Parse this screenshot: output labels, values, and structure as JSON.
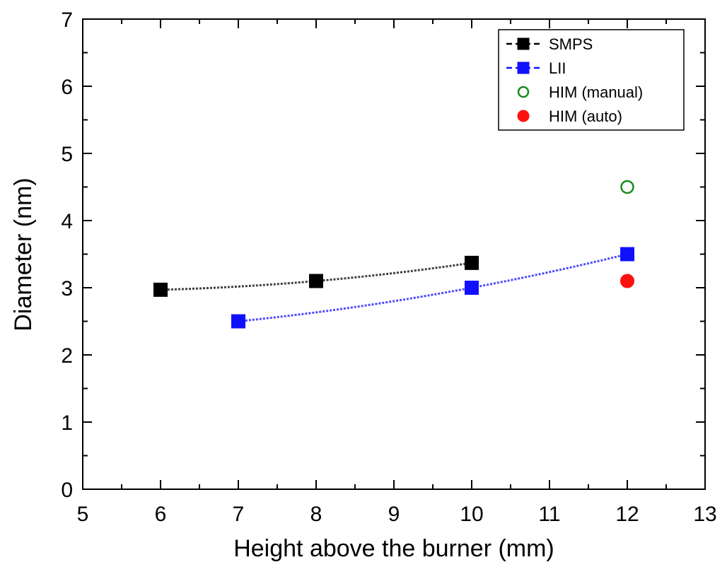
{
  "chart_data": {
    "type": "scatter",
    "title": "",
    "xlabel": "Height above the burner (mm)",
    "ylabel": "Diameter (nm)",
    "xlim": [
      5,
      13
    ],
    "ylim": [
      0,
      7
    ],
    "xticks": [
      5,
      6,
      7,
      8,
      9,
      10,
      11,
      12,
      13
    ],
    "yticks": [
      0,
      1,
      2,
      3,
      4,
      5,
      6,
      7
    ],
    "grid": false,
    "legend_position": "top-right",
    "series": [
      {
        "name": "SMPS",
        "marker": "square-filled",
        "line": "dashed-fit",
        "color": "#000000",
        "x": [
          6,
          8,
          10
        ],
        "y": [
          2.97,
          3.1,
          3.37
        ]
      },
      {
        "name": "LII",
        "marker": "square-filled",
        "line": "dashed-fit",
        "color": "#1010ff",
        "x": [
          7,
          10,
          12
        ],
        "y": [
          2.5,
          3.0,
          3.5
        ]
      },
      {
        "name": "HIM (manual)",
        "marker": "circle-open",
        "line": "none",
        "color": "#1a8a1a",
        "x": [
          12
        ],
        "y": [
          4.5
        ]
      },
      {
        "name": "HIM (auto)",
        "marker": "circle-filled",
        "line": "none",
        "color": "#ff1010",
        "x": [
          12
        ],
        "y": [
          3.1
        ]
      }
    ]
  }
}
